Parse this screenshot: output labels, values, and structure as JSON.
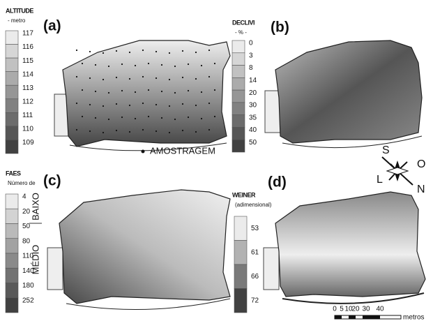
{
  "panels": [
    {
      "label": "(a)",
      "legend_title": "ALTITUDE",
      "legend_unit": "- metro",
      "legend_labels": [
        "117",
        "116",
        "115",
        "114",
        "113",
        "112",
        "111",
        "110",
        "109"
      ],
      "annotation": "AMOSTRAGEM"
    },
    {
      "label": "(b)",
      "legend_title": "DECLIVI",
      "legend_unit": "- % -",
      "legend_labels": [
        "0",
        "3",
        "8",
        "14",
        "20",
        "30",
        "35",
        "40",
        "50"
      ]
    },
    {
      "label": "(c)",
      "legend_title": "FAES",
      "legend_unit": "Número de",
      "legend_labels": [
        "4",
        "20",
        "50",
        "80",
        "110",
        "140",
        "180",
        "252"
      ],
      "classes": [
        "BAIXO",
        "MÉDIO"
      ]
    },
    {
      "label": "(d)",
      "legend_title": "WEINER",
      "legend_unit": "(adimensional)",
      "legend_labels": [
        "53",
        "61",
        "66",
        "72"
      ]
    }
  ],
  "compass": [
    "S",
    "O",
    "N",
    "L"
  ],
  "scale": {
    "ticks": [
      "0",
      "5",
      "10",
      "20",
      "30",
      "40"
    ],
    "unit": "metros"
  }
}
